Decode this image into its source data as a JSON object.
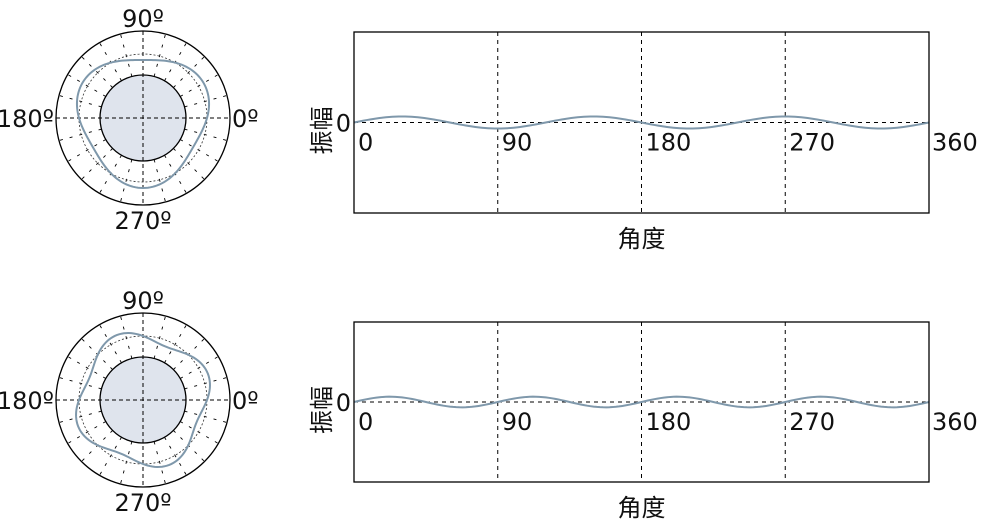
{
  "colors": {
    "curve": "#7f98ab",
    "inner_fill": "#dfe4ed",
    "axis": "#000000"
  },
  "chart_data": [
    {
      "type": "polar",
      "angle_labels": [
        "0º",
        "90º",
        "180º",
        "270º"
      ],
      "curve": {
        "function": "r = 1 + 0.1*sin(3θ)",
        "harmonic": 3
      },
      "grid": true
    },
    {
      "type": "line",
      "xlabel": "角度",
      "ylabel": "振幅",
      "x_ticks": [
        "0",
        "90",
        "180",
        "270",
        "360"
      ],
      "y_ticks": [
        "0"
      ],
      "xlim": [
        0,
        360
      ],
      "ylim": [
        -1,
        1
      ],
      "series": [
        {
          "function": "0.07*sin(3x)",
          "harmonic": 3,
          "amplitude": 0.07
        }
      ],
      "grid": true
    },
    {
      "type": "polar",
      "angle_labels": [
        "0º",
        "90º",
        "180º",
        "270º"
      ],
      "curve": {
        "function": "r = 1 + 0.1*sin(4θ)",
        "harmonic": 4
      },
      "grid": true
    },
    {
      "type": "line",
      "xlabel": "角度",
      "ylabel": "振幅",
      "x_ticks": [
        "0",
        "90",
        "180",
        "270",
        "360"
      ],
      "y_ticks": [
        "0"
      ],
      "xlim": [
        0,
        360
      ],
      "ylim": [
        -1,
        1
      ],
      "series": [
        {
          "function": "0.07*sin(4x)",
          "harmonic": 4,
          "amplitude": 0.07
        }
      ],
      "grid": true
    }
  ]
}
